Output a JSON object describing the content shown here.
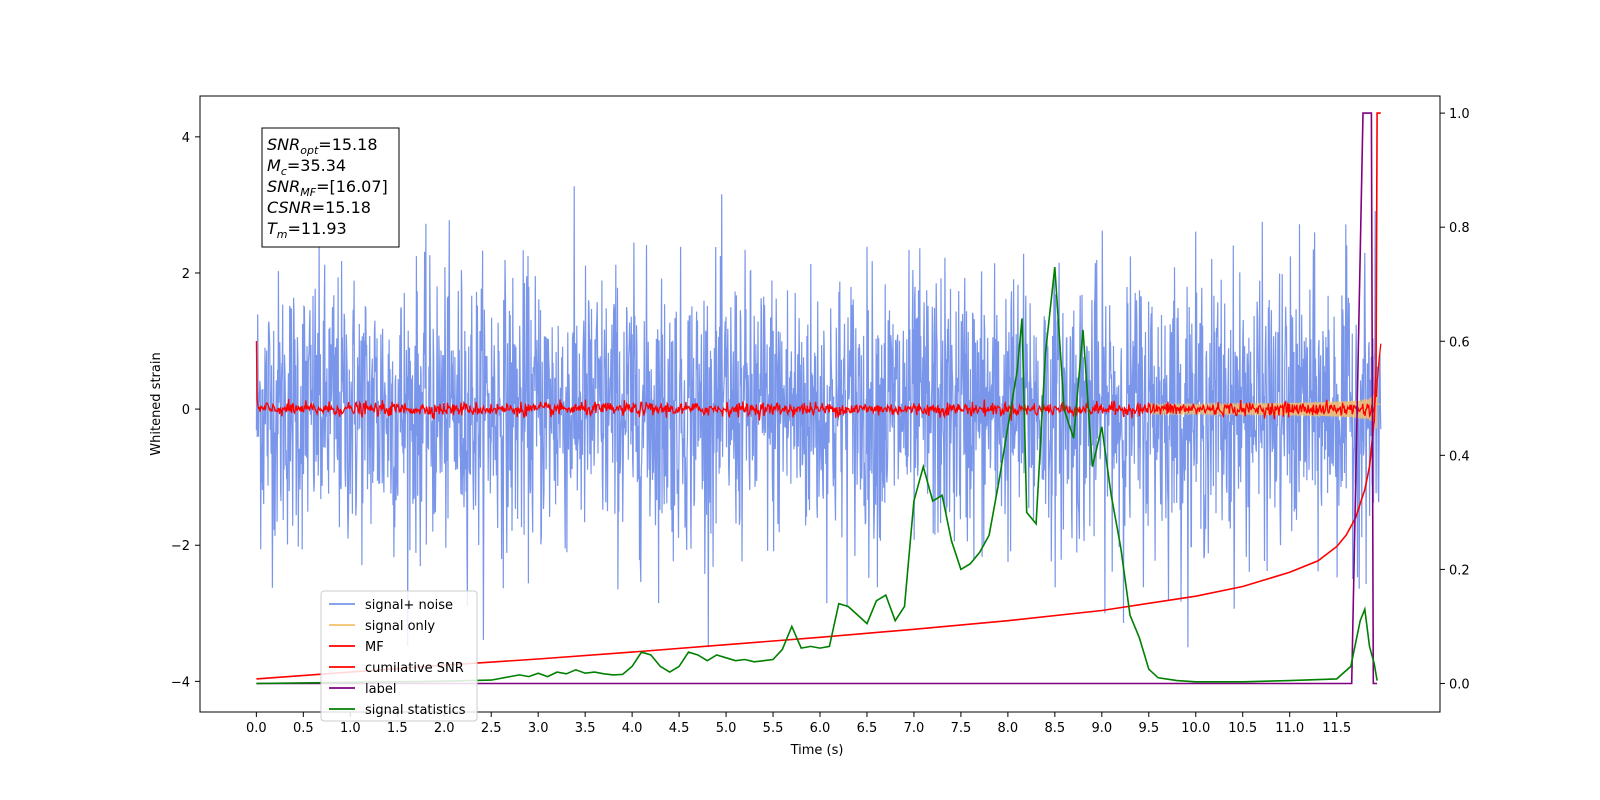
{
  "chart_data": {
    "type": "line",
    "xlabel": "Time (s)",
    "ylabel": "Whitened strain",
    "xlim": [
      -0.6,
      12.6
    ],
    "ylim": [
      -4.45,
      4.6
    ],
    "y2lim": [
      -0.05,
      1.03
    ],
    "x_ticks": [
      "0.0",
      "0.5",
      "1.0",
      "1.5",
      "2.0",
      "2.5",
      "3.0",
      "3.5",
      "4.0",
      "4.5",
      "5.0",
      "5.5",
      "6.0",
      "6.5",
      "7.0",
      "7.5",
      "8.0",
      "8.5",
      "9.0",
      "9.5",
      "10.0",
      "10.5",
      "11.0",
      "11.5"
    ],
    "y_ticks": [
      "4",
      "2",
      "0",
      "−2",
      "−4"
    ],
    "y2_ticks": [
      "1.0",
      "0.8",
      "0.6",
      "0.4",
      "0.2",
      "0.0"
    ],
    "grid": false,
    "legend_position": "lower-left",
    "annotation": {
      "lines": [
        {
          "base": "SNR",
          "sub": "opt",
          "rest": "=15.18"
        },
        {
          "base": "M",
          "sub": "c",
          "rest": "=35.34"
        },
        {
          "base": "SNR",
          "sub": "MF",
          "rest": "=[16.07]"
        },
        {
          "base": "CSNR",
          "sub": "",
          "rest": "=15.18"
        },
        {
          "base": "T",
          "sub": "m",
          "rest": "=11.93"
        }
      ]
    },
    "series": [
      {
        "name": "signal+ noise",
        "color": "#4169e1",
        "axis": "left",
        "envelope": 1.0,
        "t_end": 11.97
      },
      {
        "name": "signal only",
        "color": "#f4c06c",
        "axis": "left",
        "chirp_end": 11.93,
        "t_end": 11.97
      },
      {
        "name": "MF",
        "color": "#ff0000",
        "axis": "left",
        "start_value": 1.0,
        "noise_level": 0.05,
        "t_end": 11.97
      },
      {
        "name": "cumilative SNR",
        "color": "#ff0000",
        "axis": "right",
        "x": [
          0.0,
          1,
          2,
          3,
          4,
          5,
          6,
          7,
          8,
          9,
          10,
          10.5,
          11,
          11.3,
          11.5,
          11.6,
          11.7,
          11.8,
          11.85,
          11.9,
          11.92,
          11.93,
          11.97
        ],
        "y": [
          0.008,
          0.02,
          0.032,
          0.043,
          0.055,
          0.068,
          0.081,
          0.095,
          0.11,
          0.128,
          0.153,
          0.17,
          0.195,
          0.215,
          0.24,
          0.26,
          0.29,
          0.34,
          0.38,
          0.46,
          0.56,
          1.0,
          1.0
        ]
      },
      {
        "name": "label",
        "color": "#800080",
        "axis": "right",
        "x": [
          0.0,
          11.66,
          11.78,
          11.87,
          11.89,
          11.93
        ],
        "y": [
          0.0,
          0.0,
          1.0,
          1.0,
          0.0,
          0.0
        ]
      },
      {
        "name": "signal statistics",
        "color": "#008000",
        "axis": "right",
        "x": [
          0.0,
          0.5,
          1.0,
          1.5,
          2.0,
          2.5,
          2.7,
          2.8,
          2.9,
          3.0,
          3.1,
          3.2,
          3.3,
          3.4,
          3.5,
          3.6,
          3.7,
          3.8,
          3.9,
          4.0,
          4.1,
          4.2,
          4.3,
          4.4,
          4.5,
          4.6,
          4.7,
          4.8,
          4.9,
          5.0,
          5.1,
          5.2,
          5.3,
          5.4,
          5.5,
          5.6,
          5.7,
          5.8,
          5.9,
          6.0,
          6.1,
          6.2,
          6.3,
          6.4,
          6.5,
          6.6,
          6.7,
          6.8,
          6.9,
          7.0,
          7.1,
          7.2,
          7.3,
          7.4,
          7.5,
          7.6,
          7.7,
          7.8,
          7.9,
          8.0,
          8.1,
          8.15,
          8.2,
          8.3,
          8.4,
          8.5,
          8.6,
          8.7,
          8.8,
          8.9,
          9.0,
          9.1,
          9.2,
          9.3,
          9.4,
          9.5,
          9.6,
          9.8,
          10.0,
          10.5,
          11.0,
          11.5,
          11.65,
          11.75,
          11.8,
          11.85,
          11.9,
          11.93
        ],
        "y": [
          0.0,
          0.001,
          0.002,
          0.003,
          0.004,
          0.006,
          0.012,
          0.015,
          0.012,
          0.018,
          0.012,
          0.02,
          0.017,
          0.024,
          0.018,
          0.02,
          0.017,
          0.015,
          0.016,
          0.03,
          0.055,
          0.05,
          0.03,
          0.02,
          0.03,
          0.055,
          0.05,
          0.04,
          0.05,
          0.045,
          0.04,
          0.042,
          0.038,
          0.04,
          0.042,
          0.06,
          0.1,
          0.062,
          0.065,
          0.062,
          0.065,
          0.14,
          0.135,
          0.12,
          0.105,
          0.145,
          0.155,
          0.11,
          0.135,
          0.32,
          0.38,
          0.32,
          0.33,
          0.25,
          0.2,
          0.21,
          0.23,
          0.26,
          0.35,
          0.45,
          0.55,
          0.64,
          0.3,
          0.28,
          0.58,
          0.73,
          0.48,
          0.43,
          0.62,
          0.38,
          0.45,
          0.33,
          0.24,
          0.12,
          0.08,
          0.025,
          0.01,
          0.005,
          0.003,
          0.003,
          0.005,
          0.008,
          0.03,
          0.11,
          0.13,
          0.065,
          0.035,
          0.005
        ]
      }
    ]
  }
}
